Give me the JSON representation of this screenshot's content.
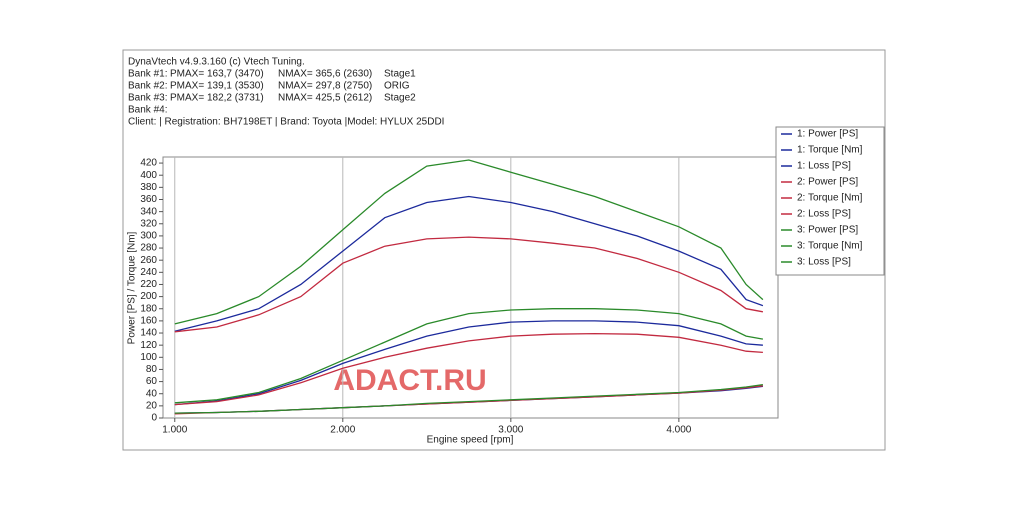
{
  "header": {
    "app": "DynaVtech v4.9.3.160 (c) Vtech Tuning.",
    "banks": [
      {
        "label": "Bank #1:",
        "pmax": "PMAX= 163,7 (3470)",
        "nmax": "NMAX= 365,6 (2630)",
        "stage": "Stage1"
      },
      {
        "label": "Bank #2:",
        "pmax": "PMAX= 139,1 (3530)",
        "nmax": "NMAX= 297,8 (2750)",
        "stage": "ORIG"
      },
      {
        "label": "Bank #3:",
        "pmax": "PMAX= 182,2 (3731)",
        "nmax": "NMAX= 425,5 (2612)",
        "stage": "Stage2"
      },
      {
        "label": "Bank #4:"
      }
    ],
    "client": "Client:   | Registration:  BH7198ET | Brand: Toyota |Model:  HYLUX 25DDI"
  },
  "watermark": "ADACT.RU",
  "chart_data": {
    "type": "line",
    "x_label": "Engine speed [rpm]",
    "y_label": "Power [PS] / Torque [Nm]",
    "x": [
      1000,
      1250,
      1500,
      1750,
      2000,
      2250,
      2500,
      2750,
      3000,
      3250,
      3500,
      3750,
      4000,
      4250,
      4400,
      4500
    ],
    "xlim": [
      930,
      4590
    ],
    "xticks": [
      {
        "value": 1000,
        "label": "1.000"
      },
      {
        "value": 2000,
        "label": "2.000"
      },
      {
        "value": 3000,
        "label": "3.000"
      },
      {
        "value": 4000,
        "label": "4.000"
      }
    ],
    "ylim": [
      0,
      430
    ],
    "yticks": [
      0,
      20,
      40,
      60,
      80,
      100,
      120,
      140,
      160,
      180,
      200,
      220,
      240,
      260,
      280,
      300,
      320,
      340,
      360,
      380,
      400,
      420
    ],
    "grid": "x",
    "series": [
      {
        "name": "1: Power [PS]",
        "color": "#1c2a9c",
        "values": [
          22,
          28,
          40,
          62,
          90,
          113,
          135,
          150,
          158,
          160,
          160,
          158,
          152,
          135,
          122,
          120
        ]
      },
      {
        "name": "1: Torque [Nm]",
        "color": "#1c2a9c",
        "values": [
          143,
          160,
          180,
          220,
          275,
          330,
          355,
          365,
          355,
          340,
          320,
          300,
          275,
          245,
          195,
          185
        ]
      },
      {
        "name": "1: Loss [PS]",
        "color": "#1c2a9c",
        "values": [
          8,
          9,
          11,
          14,
          17,
          20,
          23,
          26,
          29,
          32,
          35,
          38,
          41,
          45,
          49,
          52
        ]
      },
      {
        "name": "2: Power [PS]",
        "color": "#c22a40",
        "values": [
          22,
          27,
          38,
          58,
          82,
          100,
          115,
          127,
          135,
          138,
          139,
          138,
          133,
          120,
          110,
          108
        ]
      },
      {
        "name": "2: Torque [Nm]",
        "color": "#c22a40",
        "values": [
          142,
          150,
          170,
          200,
          255,
          283,
          295,
          298,
          295,
          288,
          280,
          263,
          240,
          210,
          180,
          175
        ]
      },
      {
        "name": "2: Loss [PS]",
        "color": "#c22a40",
        "values": [
          7,
          9,
          11,
          14,
          17,
          20,
          23,
          26,
          29,
          32,
          35,
          38,
          41,
          46,
          50,
          53
        ]
      },
      {
        "name": "3: Power [PS]",
        "color": "#2a8a2a",
        "values": [
          25,
          30,
          42,
          65,
          95,
          125,
          155,
          172,
          178,
          180,
          180,
          178,
          172,
          155,
          135,
          130
        ]
      },
      {
        "name": "3: Torque [Nm]",
        "color": "#2a8a2a",
        "values": [
          155,
          172,
          200,
          250,
          310,
          370,
          415,
          425,
          405,
          385,
          365,
          340,
          315,
          280,
          220,
          195
        ]
      },
      {
        "name": "3: Loss [PS]",
        "color": "#2a8a2a",
        "values": [
          8,
          9,
          11,
          14,
          17,
          20,
          24,
          27,
          30,
          33,
          36,
          39,
          42,
          47,
          51,
          55
        ]
      }
    ]
  }
}
